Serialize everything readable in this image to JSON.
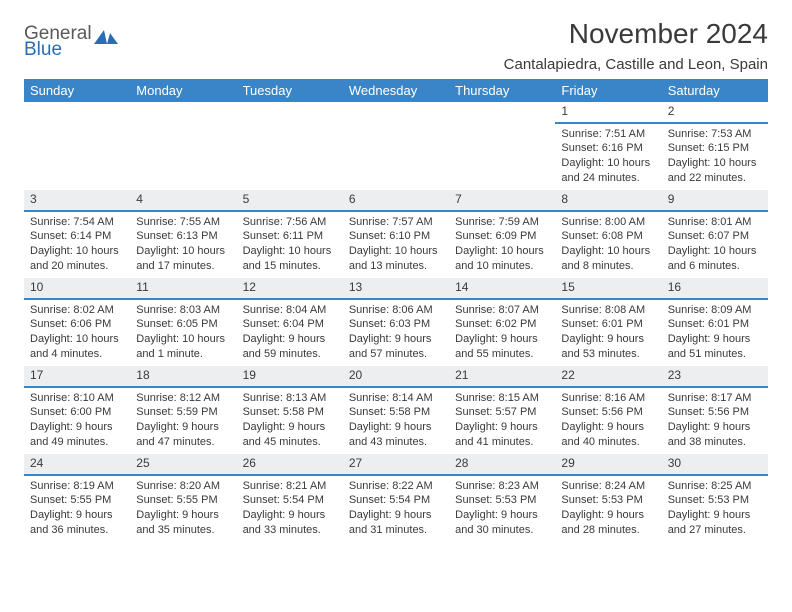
{
  "brand": {
    "line1": "General",
    "line2": "Blue"
  },
  "title": "November 2024",
  "location": "Cantalapiedra, Castille and Leon, Spain",
  "colors": {
    "header_bg": "#3a85c7",
    "daynum_bg": "#eceef0",
    "daynum_border": "#3a85c7",
    "text": "#3a3a3a",
    "logo_grey": "#5a5a5a",
    "logo_blue": "#2a6db5"
  },
  "dayNames": [
    "Sunday",
    "Monday",
    "Tuesday",
    "Wednesday",
    "Thursday",
    "Friday",
    "Saturday"
  ],
  "weeks": [
    [
      {
        "n": ""
      },
      {
        "n": ""
      },
      {
        "n": ""
      },
      {
        "n": ""
      },
      {
        "n": ""
      },
      {
        "n": "1",
        "sr": "Sunrise: 7:51 AM",
        "ss": "Sunset: 6:16 PM",
        "dl": "Daylight: 10 hours and 24 minutes."
      },
      {
        "n": "2",
        "sr": "Sunrise: 7:53 AM",
        "ss": "Sunset: 6:15 PM",
        "dl": "Daylight: 10 hours and 22 minutes."
      }
    ],
    [
      {
        "n": "3",
        "sr": "Sunrise: 7:54 AM",
        "ss": "Sunset: 6:14 PM",
        "dl": "Daylight: 10 hours and 20 minutes."
      },
      {
        "n": "4",
        "sr": "Sunrise: 7:55 AM",
        "ss": "Sunset: 6:13 PM",
        "dl": "Daylight: 10 hours and 17 minutes."
      },
      {
        "n": "5",
        "sr": "Sunrise: 7:56 AM",
        "ss": "Sunset: 6:11 PM",
        "dl": "Daylight: 10 hours and 15 minutes."
      },
      {
        "n": "6",
        "sr": "Sunrise: 7:57 AM",
        "ss": "Sunset: 6:10 PM",
        "dl": "Daylight: 10 hours and 13 minutes."
      },
      {
        "n": "7",
        "sr": "Sunrise: 7:59 AM",
        "ss": "Sunset: 6:09 PM",
        "dl": "Daylight: 10 hours and 10 minutes."
      },
      {
        "n": "8",
        "sr": "Sunrise: 8:00 AM",
        "ss": "Sunset: 6:08 PM",
        "dl": "Daylight: 10 hours and 8 minutes."
      },
      {
        "n": "9",
        "sr": "Sunrise: 8:01 AM",
        "ss": "Sunset: 6:07 PM",
        "dl": "Daylight: 10 hours and 6 minutes."
      }
    ],
    [
      {
        "n": "10",
        "sr": "Sunrise: 8:02 AM",
        "ss": "Sunset: 6:06 PM",
        "dl": "Daylight: 10 hours and 4 minutes."
      },
      {
        "n": "11",
        "sr": "Sunrise: 8:03 AM",
        "ss": "Sunset: 6:05 PM",
        "dl": "Daylight: 10 hours and 1 minute."
      },
      {
        "n": "12",
        "sr": "Sunrise: 8:04 AM",
        "ss": "Sunset: 6:04 PM",
        "dl": "Daylight: 9 hours and 59 minutes."
      },
      {
        "n": "13",
        "sr": "Sunrise: 8:06 AM",
        "ss": "Sunset: 6:03 PM",
        "dl": "Daylight: 9 hours and 57 minutes."
      },
      {
        "n": "14",
        "sr": "Sunrise: 8:07 AM",
        "ss": "Sunset: 6:02 PM",
        "dl": "Daylight: 9 hours and 55 minutes."
      },
      {
        "n": "15",
        "sr": "Sunrise: 8:08 AM",
        "ss": "Sunset: 6:01 PM",
        "dl": "Daylight: 9 hours and 53 minutes."
      },
      {
        "n": "16",
        "sr": "Sunrise: 8:09 AM",
        "ss": "Sunset: 6:01 PM",
        "dl": "Daylight: 9 hours and 51 minutes."
      }
    ],
    [
      {
        "n": "17",
        "sr": "Sunrise: 8:10 AM",
        "ss": "Sunset: 6:00 PM",
        "dl": "Daylight: 9 hours and 49 minutes."
      },
      {
        "n": "18",
        "sr": "Sunrise: 8:12 AM",
        "ss": "Sunset: 5:59 PM",
        "dl": "Daylight: 9 hours and 47 minutes."
      },
      {
        "n": "19",
        "sr": "Sunrise: 8:13 AM",
        "ss": "Sunset: 5:58 PM",
        "dl": "Daylight: 9 hours and 45 minutes."
      },
      {
        "n": "20",
        "sr": "Sunrise: 8:14 AM",
        "ss": "Sunset: 5:58 PM",
        "dl": "Daylight: 9 hours and 43 minutes."
      },
      {
        "n": "21",
        "sr": "Sunrise: 8:15 AM",
        "ss": "Sunset: 5:57 PM",
        "dl": "Daylight: 9 hours and 41 minutes."
      },
      {
        "n": "22",
        "sr": "Sunrise: 8:16 AM",
        "ss": "Sunset: 5:56 PM",
        "dl": "Daylight: 9 hours and 40 minutes."
      },
      {
        "n": "23",
        "sr": "Sunrise: 8:17 AM",
        "ss": "Sunset: 5:56 PM",
        "dl": "Daylight: 9 hours and 38 minutes."
      }
    ],
    [
      {
        "n": "24",
        "sr": "Sunrise: 8:19 AM",
        "ss": "Sunset: 5:55 PM",
        "dl": "Daylight: 9 hours and 36 minutes."
      },
      {
        "n": "25",
        "sr": "Sunrise: 8:20 AM",
        "ss": "Sunset: 5:55 PM",
        "dl": "Daylight: 9 hours and 35 minutes."
      },
      {
        "n": "26",
        "sr": "Sunrise: 8:21 AM",
        "ss": "Sunset: 5:54 PM",
        "dl": "Daylight: 9 hours and 33 minutes."
      },
      {
        "n": "27",
        "sr": "Sunrise: 8:22 AM",
        "ss": "Sunset: 5:54 PM",
        "dl": "Daylight: 9 hours and 31 minutes."
      },
      {
        "n": "28",
        "sr": "Sunrise: 8:23 AM",
        "ss": "Sunset: 5:53 PM",
        "dl": "Daylight: 9 hours and 30 minutes."
      },
      {
        "n": "29",
        "sr": "Sunrise: 8:24 AM",
        "ss": "Sunset: 5:53 PM",
        "dl": "Daylight: 9 hours and 28 minutes."
      },
      {
        "n": "30",
        "sr": "Sunrise: 8:25 AM",
        "ss": "Sunset: 5:53 PM",
        "dl": "Daylight: 9 hours and 27 minutes."
      }
    ]
  ]
}
